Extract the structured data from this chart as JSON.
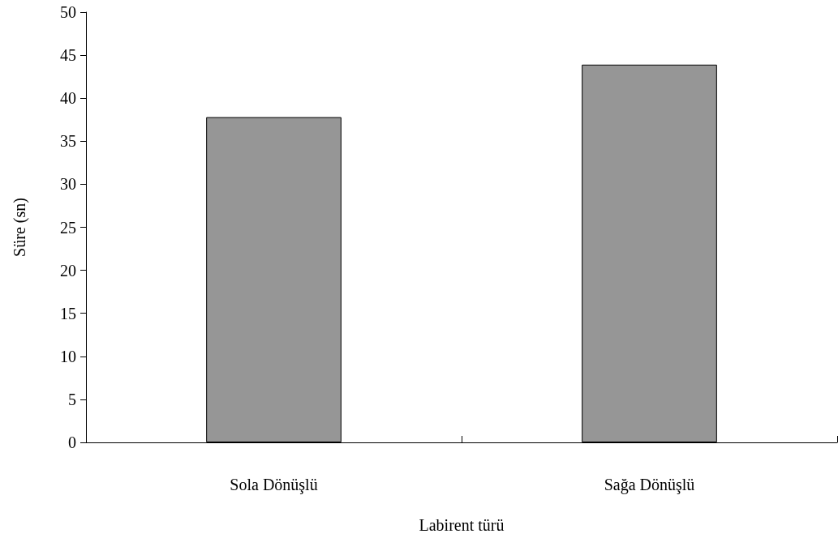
{
  "chart_data": {
    "type": "bar",
    "xlabel": "Labirent türü",
    "ylabel": "Süre (sn)",
    "categories": [
      "Sola Dönüşlü",
      "Sağa Dönüşlü"
    ],
    "values": [
      37.8,
      43.9
    ],
    "color": "#969696",
    "ylim": [
      0,
      50
    ],
    "yticks": [
      0,
      5,
      10,
      15,
      20,
      25,
      30,
      35,
      40,
      45,
      50
    ],
    "grid": false
  }
}
